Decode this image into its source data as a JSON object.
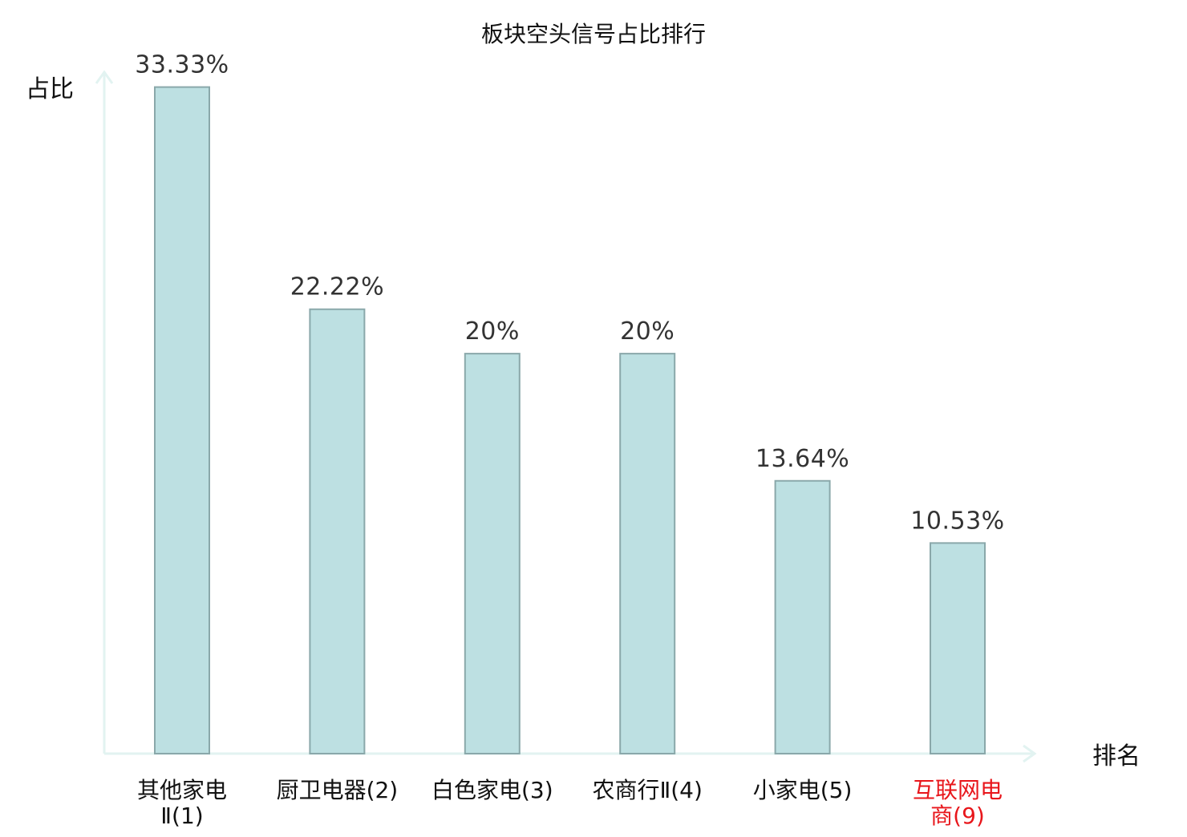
{
  "chart_data": {
    "type": "bar",
    "title": "板块空头信号占比排行",
    "ylabel": "占比",
    "xlabel": "排名",
    "ylim": [
      0,
      36
    ],
    "grid": false,
    "categories": [
      {
        "lines": [
          "其他家电",
          "Ⅱ(1)"
        ],
        "highlight": false
      },
      {
        "lines": [
          "厨卫电器(2)"
        ],
        "highlight": false
      },
      {
        "lines": [
          "白色家电(3)"
        ],
        "highlight": false
      },
      {
        "lines": [
          "农商行Ⅱ(4)"
        ],
        "highlight": false
      },
      {
        "lines": [
          "小家电(5)"
        ],
        "highlight": false
      },
      {
        "lines": [
          "互联网电",
          "商(9)"
        ],
        "highlight": true
      }
    ],
    "values": [
      33.33,
      22.22,
      20,
      20,
      13.64,
      10.53
    ],
    "value_labels": [
      "33.33%",
      "22.22%",
      "20%",
      "20%",
      "13.64%",
      "10.53%"
    ],
    "colors": {
      "bar_fill": "#bde0e2",
      "bar_stroke": "#8aa8aa",
      "axis": "#e2f3f1",
      "text": "#111111",
      "value_text": "#333333",
      "highlight": "#e8161b"
    }
  }
}
